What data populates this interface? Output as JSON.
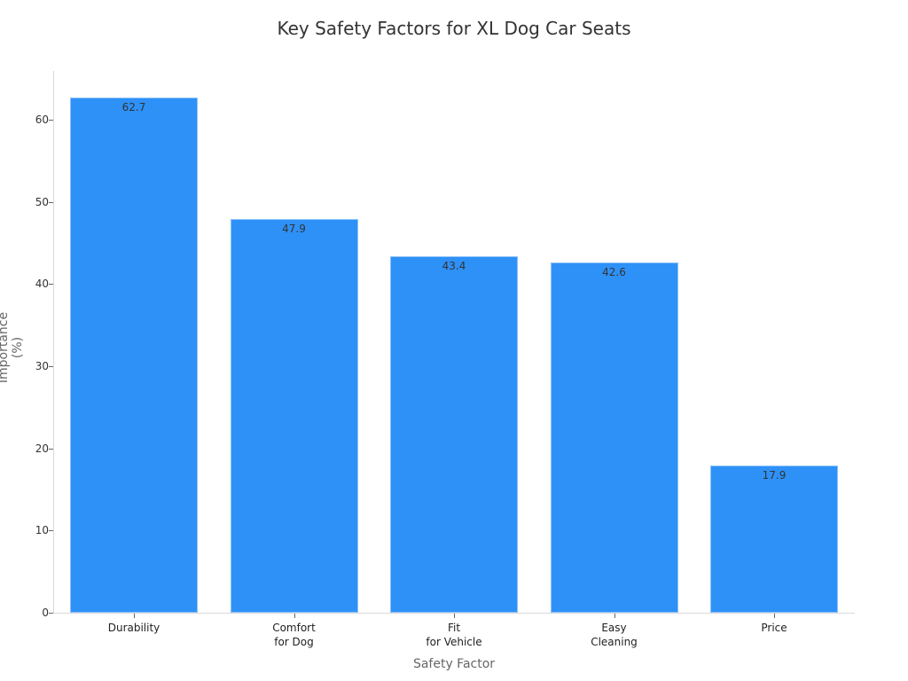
{
  "chart_data": {
    "type": "bar",
    "title": "Key Safety Factors for XL Dog Car Seats",
    "xlabel": "Safety Factor",
    "ylabel": "Importance (%)",
    "categories": [
      "Durability",
      "Comfort\nfor Dog",
      "Fit\nfor Vehicle",
      "Easy\nCleaning",
      "Price"
    ],
    "values": [
      62.7,
      47.9,
      43.4,
      42.6,
      17.9
    ],
    "value_labels": [
      "62.7",
      "47.9",
      "43.4",
      "42.6",
      "17.9"
    ],
    "yticks": [
      "0",
      "10",
      "20",
      "30",
      "40",
      "50",
      "60"
    ],
    "ylim": [
      0,
      66
    ],
    "grid": false,
    "bar_color": "#2e91f7"
  }
}
